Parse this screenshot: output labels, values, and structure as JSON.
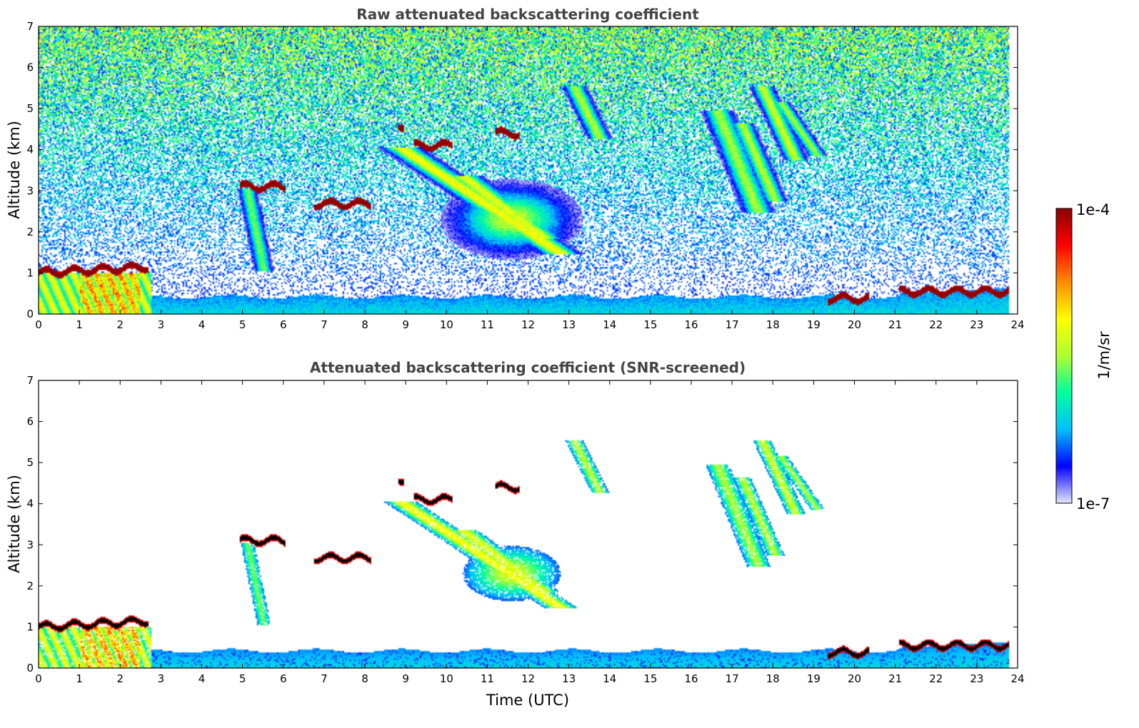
{
  "chart_data": [
    {
      "type": "heatmap",
      "title": "Raw attenuated backscattering coefficient",
      "xlabel": "",
      "ylabel": "Altitude (km)",
      "xlim": [
        0,
        24
      ],
      "ylim": [
        0,
        7
      ],
      "xticks": [
        0,
        1,
        2,
        3,
        4,
        5,
        6,
        7,
        8,
        9,
        10,
        11,
        12,
        13,
        14,
        15,
        16,
        17,
        18,
        19,
        20,
        21,
        22,
        23,
        24
      ],
      "yticks": [
        0,
        1,
        2,
        3,
        4,
        5,
        6,
        7
      ],
      "screened": false,
      "layers": [
        {
          "t0": 0.0,
          "t1": 2.7,
          "z": 1.0,
          "kind": "cloud"
        },
        {
          "t0": 4.95,
          "t1": 6.05,
          "z": 3.1,
          "kind": "cloud"
        },
        {
          "t0": 6.75,
          "t1": 8.15,
          "z": 2.68,
          "kind": "cloud"
        },
        {
          "t0": 8.8,
          "t1": 8.95,
          "z": 4.6,
          "kind": "cloud"
        },
        {
          "t0": 9.2,
          "t1": 10.15,
          "z": 4.1,
          "kind": "cloud"
        },
        {
          "t0": 11.2,
          "t1": 11.8,
          "z": 4.4,
          "kind": "cloud"
        },
        {
          "t0": 19.35,
          "t1": 20.35,
          "z": 0.38,
          "kind": "cloud"
        },
        {
          "t0": 21.1,
          "t1": 23.8,
          "z": 0.55,
          "kind": "cloud"
        }
      ]
    },
    {
      "type": "heatmap",
      "title": "Attenuated backscattering coefficient (SNR-screened)",
      "xlabel": "Time (UTC)",
      "ylabel": "Altitude (km)",
      "xlim": [
        0,
        24
      ],
      "ylim": [
        0,
        7
      ],
      "xticks": [
        0,
        1,
        2,
        3,
        4,
        5,
        6,
        7,
        8,
        9,
        10,
        11,
        12,
        13,
        14,
        15,
        16,
        17,
        18,
        19,
        20,
        21,
        22,
        23,
        24
      ],
      "yticks": [
        0,
        1,
        2,
        3,
        4,
        5,
        6,
        7
      ],
      "screened": true
    }
  ],
  "colorbar": {
    "label": "1/m/sr",
    "min_label": "1e-7",
    "max_label": "1e-4",
    "colors": [
      "#e6e6fa",
      "#0000ff",
      "#00bfff",
      "#00ff9f",
      "#adff2f",
      "#ffff00",
      "#ff8c00",
      "#ff0000",
      "#8b0000"
    ]
  }
}
